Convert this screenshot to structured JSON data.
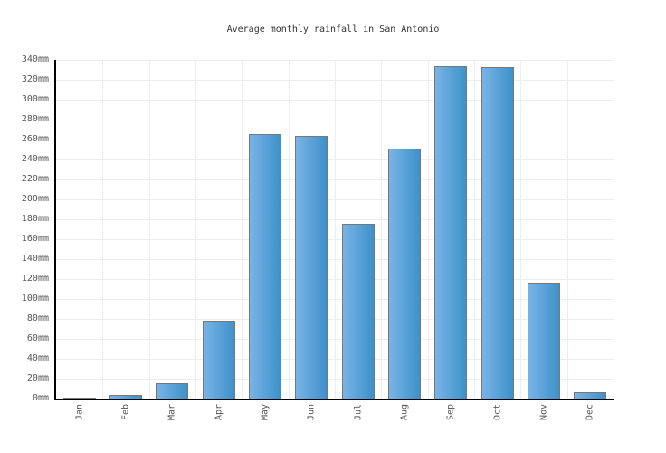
{
  "chart_data": {
    "type": "bar",
    "title": "Average monthly rainfall in San Antonio",
    "categories": [
      "Jan",
      "Feb",
      "Mar",
      "Apr",
      "May",
      "Jun",
      "Jul",
      "Aug",
      "Sep",
      "Oct",
      "Nov",
      "Dec"
    ],
    "values": [
      1,
      4,
      15,
      78,
      265,
      264,
      175,
      251,
      334,
      333,
      116,
      6
    ],
    "unit": "mm",
    "xlabel": "",
    "ylabel": "",
    "ylim": [
      0,
      340
    ],
    "ytick_step": 20,
    "y_tick_labels": [
      "0mm",
      "20mm",
      "40mm",
      "60mm",
      "80mm",
      "100mm",
      "120mm",
      "140mm",
      "160mm",
      "180mm",
      "200mm",
      "220mm",
      "240mm",
      "260mm",
      "280mm",
      "300mm",
      "320mm",
      "340mm"
    ],
    "grid": "on",
    "legend": "none",
    "colors": {
      "bar_gradient_left": "#79b3e7",
      "bar_gradient_right": "#3d92c9",
      "bar_border": "#777777",
      "gridline": "#ededed",
      "axis": "#000000",
      "tick_label": "#555555",
      "title": "#333333",
      "background": "#ffffff"
    }
  }
}
